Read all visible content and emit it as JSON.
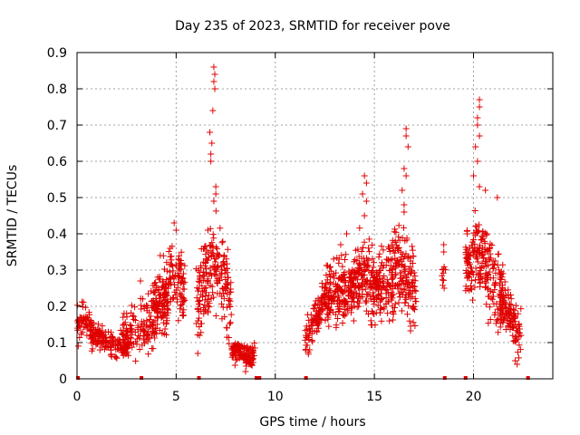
{
  "chart_data": {
    "type": "scatter",
    "title": "Day 235 of 2023, SRMTID for receiver pove",
    "xlabel": "GPS time / hours",
    "ylabel": "SRMTID / TECUs",
    "xlim": [
      0,
      24
    ],
    "ylim": [
      0,
      0.9
    ],
    "x_ticks": [
      0,
      5,
      10,
      15,
      20
    ],
    "y_ticks": [
      0,
      0.1,
      0.2,
      0.3,
      0.4,
      0.5,
      0.6,
      0.7,
      0.8,
      0.9
    ],
    "grid": true,
    "marker": "+",
    "color": "#e00000",
    "series": [
      {
        "name": "SRMTID",
        "clusters": [
          {
            "x0": 0.0,
            "x1": 0.9,
            "count": 60,
            "seed": 11,
            "y_center": [
              [
                0.0,
                0.15
              ],
              [
                0.4,
                0.17
              ],
              [
                0.9,
                0.12
              ]
            ],
            "spread": 0.035,
            "spikes": []
          },
          {
            "x0": 0.7,
            "x1": 2.6,
            "count": 150,
            "seed": 12,
            "y_center": [
              [
                0.7,
                0.12
              ],
              [
                1.3,
                0.11
              ],
              [
                2.0,
                0.09
              ],
              [
                2.6,
                0.1
              ]
            ],
            "spread": 0.025,
            "spikes": []
          },
          {
            "x0": 2.2,
            "x1": 4.6,
            "count": 180,
            "seed": 13,
            "y_center": [
              [
                2.2,
                0.12
              ],
              [
                3.0,
                0.14
              ],
              [
                3.6,
                0.16
              ],
              [
                4.2,
                0.2
              ],
              [
                4.6,
                0.22
              ]
            ],
            "spread": 0.055,
            "spikes": [
              [
                3.2,
                0.27
              ],
              [
                4.2,
                0.34
              ]
            ]
          },
          {
            "x0": 3.8,
            "x1": 5.5,
            "count": 160,
            "seed": 14,
            "y_center": [
              [
                3.8,
                0.18
              ],
              [
                4.6,
                0.25
              ],
              [
                5.0,
                0.3
              ],
              [
                5.5,
                0.22
              ]
            ],
            "spread": 0.07,
            "spikes": [
              [
                4.9,
                0.43
              ],
              [
                5.0,
                0.41
              ],
              [
                4.7,
                0.36
              ]
            ]
          },
          {
            "x0": 6.0,
            "x1": 7.8,
            "count": 200,
            "seed": 15,
            "y_center": [
              [
                6.0,
                0.2
              ],
              [
                6.5,
                0.28
              ],
              [
                6.9,
                0.33
              ],
              [
                7.3,
                0.28
              ],
              [
                7.8,
                0.2
              ]
            ],
            "spread": 0.09,
            "spikes": [
              [
                6.9,
                0.86
              ],
              [
                6.95,
                0.84
              ],
              [
                6.9,
                0.82
              ],
              [
                6.95,
                0.8
              ],
              [
                6.85,
                0.74
              ],
              [
                6.7,
                0.68
              ],
              [
                6.8,
                0.65
              ],
              [
                6.75,
                0.62
              ],
              [
                6.75,
                0.6
              ],
              [
                7.0,
                0.53
              ],
              [
                7.0,
                0.51
              ],
              [
                6.9,
                0.49
              ],
              [
                6.6,
                0.41
              ]
            ]
          },
          {
            "x0": 7.8,
            "x1": 9.0,
            "count": 120,
            "seed": 16,
            "y_center": [
              [
                7.8,
                0.08
              ],
              [
                8.4,
                0.07
              ],
              [
                9.0,
                0.06
              ]
            ],
            "spread": 0.025,
            "spikes": [
              [
                8.5,
                0.02
              ]
            ]
          },
          {
            "x0": 11.5,
            "x1": 12.5,
            "count": 100,
            "seed": 17,
            "y_center": [
              [
                11.5,
                0.1
              ],
              [
                12.0,
                0.17
              ],
              [
                12.5,
                0.22
              ]
            ],
            "spread": 0.04,
            "spikes": []
          },
          {
            "x0": 12.5,
            "x1": 14.0,
            "count": 200,
            "seed": 18,
            "y_center": [
              [
                12.5,
                0.22
              ],
              [
                13.2,
                0.24
              ],
              [
                14.0,
                0.25
              ]
            ],
            "spread": 0.06,
            "spikes": [
              [
                13.6,
                0.4
              ],
              [
                13.3,
                0.37
              ]
            ]
          },
          {
            "x0": 14.0,
            "x1": 15.5,
            "count": 200,
            "seed": 19,
            "y_center": [
              [
                14.0,
                0.26
              ],
              [
                14.5,
                0.3
              ],
              [
                15.0,
                0.26
              ],
              [
                15.5,
                0.25
              ]
            ],
            "spread": 0.08,
            "spikes": [
              [
                14.5,
                0.56
              ],
              [
                14.6,
                0.54
              ],
              [
                14.4,
                0.51
              ],
              [
                14.6,
                0.49
              ],
              [
                14.5,
                0.45
              ]
            ]
          },
          {
            "x0": 15.5,
            "x1": 17.1,
            "count": 200,
            "seed": 20,
            "y_center": [
              [
                15.5,
                0.25
              ],
              [
                16.1,
                0.3
              ],
              [
                16.5,
                0.3
              ],
              [
                17.1,
                0.22
              ]
            ],
            "spread": 0.08,
            "spikes": [
              [
                16.6,
                0.69
              ],
              [
                16.6,
                0.67
              ],
              [
                16.7,
                0.64
              ],
              [
                16.5,
                0.58
              ],
              [
                16.6,
                0.56
              ],
              [
                16.4,
                0.52
              ],
              [
                16.5,
                0.48
              ],
              [
                16.5,
                0.46
              ]
            ]
          },
          {
            "x0": 18.4,
            "x1": 18.6,
            "count": 10,
            "seed": 21,
            "y_center": [
              [
                18.4,
                0.28
              ],
              [
                18.6,
                0.3
              ]
            ],
            "spread": 0.03,
            "spikes": [
              [
                18.5,
                0.37
              ],
              [
                18.5,
                0.35
              ]
            ]
          },
          {
            "x0": 19.6,
            "x1": 21.5,
            "count": 220,
            "seed": 22,
            "y_center": [
              [
                19.6,
                0.3
              ],
              [
                20.0,
                0.35
              ],
              [
                20.5,
                0.33
              ],
              [
                21.0,
                0.26
              ],
              [
                21.5,
                0.22
              ]
            ],
            "spread": 0.08,
            "spikes": [
              [
                20.3,
                0.77
              ],
              [
                20.3,
                0.75
              ],
              [
                20.2,
                0.72
              ],
              [
                20.2,
                0.7
              ],
              [
                20.3,
                0.67
              ],
              [
                20.1,
                0.64
              ],
              [
                20.2,
                0.6
              ],
              [
                20.0,
                0.56
              ],
              [
                20.3,
                0.53
              ],
              [
                20.6,
                0.52
              ],
              [
                21.2,
                0.5
              ]
            ]
          },
          {
            "x0": 21.3,
            "x1": 22.4,
            "count": 120,
            "seed": 23,
            "y_center": [
              [
                21.3,
                0.23
              ],
              [
                21.8,
                0.18
              ],
              [
                22.4,
                0.12
              ]
            ],
            "spread": 0.05,
            "spikes": [
              [
                22.1,
                0.05
              ],
              [
                22.2,
                0.04
              ]
            ]
          }
        ]
      }
    ],
    "gap_markers_x": [
      0.05,
      3.25,
      6.15,
      9.05,
      9.2,
      11.55,
      18.55,
      19.6,
      22.75
    ]
  }
}
